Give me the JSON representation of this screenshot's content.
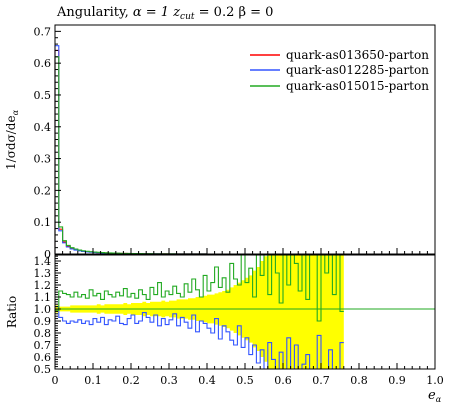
{
  "chart_data": [
    {
      "type": "line",
      "panel": "main",
      "title": "Angularity, α = 1 z_cut = 0.2 β = 0",
      "title_parts": {
        "prefix": "Angularity, ",
        "alpha": "α = 1 ",
        "z": "z",
        "cut": "cut",
        "rest": " = 0.2 β = 0"
      },
      "ylabel": "1/σdσ/de_α",
      "ylabel_parts": {
        "main": "1/σdσ/de",
        "sub": "α"
      },
      "xlabel": "e_α",
      "xlabel_parts": {
        "main": "e",
        "sub": "α"
      },
      "xlim": [
        0,
        1.0
      ],
      "ylim": [
        0,
        0.72
      ],
      "x_ticks": [
        "0",
        "0.1",
        "0.2",
        "0.3",
        "0.4",
        "0.5",
        "0.6",
        "0.7",
        "0.8",
        "0.9",
        "1.0"
      ],
      "y_ticks": [
        "0",
        "0.1",
        "0.2",
        "0.3",
        "0.4",
        "0.5",
        "0.6",
        "0.7"
      ],
      "legend_position": "top-right",
      "bin_width": 0.01,
      "series": [
        {
          "name": "quark-as013650-parton",
          "color": "#ff0000",
          "values": [
            0.64,
            0.078,
            0.038,
            0.024,
            0.018,
            0.014,
            0.011,
            0.009,
            0.0075,
            0.0063,
            0.0053,
            0.0045,
            0.0038,
            0.0033,
            0.0029,
            0.0025,
            0.0022,
            0.0019,
            0.0017,
            0.0015,
            0.0013,
            0.0012,
            0.0011,
            0.001,
            0.0009,
            0.0008,
            0.0007,
            0.0006,
            0.0005,
            0.0005,
            0.0004,
            0.0004,
            0.0003,
            0.0003,
            0.0003,
            0.0002,
            0.0002,
            0.0002,
            0.0002,
            0.0001
          ]
        },
        {
          "name": "quark-as012285-parton",
          "color": "#3355ff",
          "values": [
            0.655,
            0.073,
            0.035,
            0.022,
            0.016,
            0.0125,
            0.0099,
            0.008,
            0.0066,
            0.0055,
            0.0046,
            0.0039,
            0.0033,
            0.0028,
            0.0025,
            0.0021,
            0.0019,
            0.0016,
            0.0014,
            0.0012,
            0.0011,
            0.001,
            0.0009,
            0.0008,
            0.0007,
            0.0006,
            0.0005,
            0.0005,
            0.0004,
            0.0004,
            0.0003,
            0.0003,
            0.0002,
            0.0002,
            0.0002,
            0.0002,
            0.0001,
            0.0001,
            0.0001,
            0.0001
          ]
        },
        {
          "name": "quark-as015015-parton",
          "color": "#22aa22",
          "values": [
            0.62,
            0.085,
            0.042,
            0.027,
            0.02,
            0.0157,
            0.0124,
            0.0101,
            0.0085,
            0.0072,
            0.0061,
            0.0052,
            0.0044,
            0.0038,
            0.0034,
            0.0029,
            0.0026,
            0.0022,
            0.002,
            0.0018,
            0.0015,
            0.0014,
            0.0013,
            0.0012,
            0.0011,
            0.001,
            0.0008,
            0.0007,
            0.0006,
            0.0006,
            0.0005,
            0.0005,
            0.0004,
            0.0004,
            0.0004,
            0.0003,
            0.0003,
            0.0003,
            0.0003,
            0.0002
          ]
        }
      ]
    },
    {
      "type": "line",
      "panel": "ratio",
      "ylabel": "Ratio",
      "xlim": [
        0,
        1.0
      ],
      "ylim": [
        0.5,
        1.45
      ],
      "y_ticks": [
        "0.5",
        "0.6",
        "0.7",
        "0.8",
        "0.9",
        "1.0",
        "1.1",
        "1.2",
        "1.3",
        "1.4"
      ],
      "bin_width": 0.01,
      "band": {
        "color": "#ffff00",
        "lower": [
          0.97,
          0.98,
          0.98,
          0.98,
          0.97,
          0.97,
          0.97,
          0.97,
          0.97,
          0.97,
          0.97,
          0.96,
          0.97,
          0.96,
          0.96,
          0.96,
          0.96,
          0.96,
          0.95,
          0.96,
          0.95,
          0.95,
          0.95,
          0.94,
          0.95,
          0.94,
          0.94,
          0.94,
          0.93,
          0.94,
          0.93,
          0.93,
          0.92,
          0.92,
          0.92,
          0.91,
          0.91,
          0.9,
          0.9,
          0.89,
          0.88,
          0.88,
          0.87,
          0.86,
          0.85,
          0.84,
          0.82,
          0.8,
          0.78,
          0.76,
          0.74,
          0.72,
          0.68,
          0.65,
          0.6,
          0.56,
          0.5,
          0.5,
          0.5,
          0.5,
          0.5,
          0.5,
          0.5,
          0.5,
          0.5,
          0.5,
          0.5,
          0.5,
          0.5,
          0.5,
          0.5,
          0.5,
          0.5,
          0.5,
          0.5,
          0.5
        ],
        "upper": [
          1.03,
          1.02,
          1.02,
          1.02,
          1.03,
          1.03,
          1.03,
          1.03,
          1.03,
          1.03,
          1.03,
          1.04,
          1.03,
          1.04,
          1.04,
          1.04,
          1.04,
          1.04,
          1.05,
          1.04,
          1.05,
          1.05,
          1.05,
          1.06,
          1.05,
          1.06,
          1.06,
          1.06,
          1.07,
          1.06,
          1.07,
          1.07,
          1.08,
          1.08,
          1.08,
          1.09,
          1.09,
          1.1,
          1.1,
          1.11,
          1.12,
          1.12,
          1.13,
          1.14,
          1.15,
          1.16,
          1.18,
          1.2,
          1.22,
          1.24,
          1.26,
          1.28,
          1.32,
          1.35,
          1.4,
          1.44,
          1.45,
          1.45,
          1.45,
          1.45,
          1.45,
          1.45,
          1.45,
          1.45,
          1.45,
          1.45,
          1.45,
          1.45,
          1.45,
          1.45,
          1.45,
          1.45,
          1.45,
          1.45,
          1.45,
          1.45
        ]
      },
      "series": [
        {
          "name": "quark-as013650-parton",
          "color": "#ff0000",
          "values": [
            1.0,
            1.0,
            1.0,
            1.0,
            1.0,
            1.0,
            1.0,
            1.0,
            1.0,
            1.0,
            1.0,
            1.0,
            1.0,
            1.0,
            1.0,
            1.0,
            1.0,
            1.0,
            1.0,
            1.0,
            1.0,
            1.0,
            1.0,
            1.0,
            1.0,
            1.0,
            1.0,
            1.0,
            1.0,
            1.0,
            1.0,
            1.0,
            1.0,
            1.0,
            1.0,
            1.0,
            1.0,
            1.0,
            1.0,
            1.0,
            1.0,
            1.0,
            1.0,
            1.0,
            1.0,
            1.0,
            1.0,
            1.0,
            1.0,
            1.0,
            1.0,
            1.0,
            1.0,
            1.0,
            1.0,
            1.0,
            1.0,
            1.0,
            1.0,
            1.0,
            1.0,
            1.0,
            1.0,
            1.0,
            1.0,
            1.0,
            1.0,
            1.0,
            1.0,
            1.0,
            1.0,
            1.0,
            1.0,
            1.0,
            1.0,
            1.0
          ]
        },
        {
          "name": "quark-as012285-parton",
          "color": "#3355ff",
          "values": [
            1.02,
            0.93,
            0.9,
            0.88,
            0.9,
            0.89,
            0.91,
            0.88,
            0.9,
            0.87,
            0.92,
            0.89,
            0.93,
            0.87,
            0.91,
            0.9,
            0.94,
            0.88,
            0.87,
            0.92,
            0.95,
            0.88,
            0.9,
            0.97,
            0.93,
            0.89,
            0.95,
            0.86,
            0.92,
            0.87,
            0.91,
            0.96,
            0.86,
            0.93,
            0.89,
            0.84,
            0.95,
            0.81,
            0.9,
            0.88,
            0.84,
            0.8,
            0.92,
            0.75,
            0.86,
            0.81,
            0.74,
            0.7,
            0.86,
            0.68,
            0.76,
            0.62,
            0.7,
            0.55,
            0.66,
            0.5,
            0.72,
            0.58,
            0.5,
            0.64,
            0.5,
            0.76,
            0.5,
            0.7,
            0.5,
            0.54,
            0.62,
            0.5,
            0.5,
            0.78,
            0.5,
            0.5,
            0.66,
            0.5,
            0.5,
            0.72
          ]
        },
        {
          "name": "quark-as015015-parton",
          "color": "#22aa22",
          "values": [
            0.99,
            1.15,
            1.13,
            1.12,
            1.1,
            1.14,
            1.1,
            1.12,
            1.09,
            1.16,
            1.11,
            1.13,
            1.08,
            1.15,
            1.12,
            1.1,
            1.14,
            1.11,
            1.17,
            1.1,
            1.13,
            1.09,
            1.16,
            1.12,
            1.08,
            1.18,
            1.12,
            1.22,
            1.1,
            1.15,
            1.12,
            1.19,
            1.13,
            1.1,
            1.21,
            1.14,
            1.25,
            1.16,
            1.1,
            1.28,
            1.15,
            1.22,
            1.35,
            1.18,
            1.26,
            1.14,
            1.38,
            1.25,
            1.2,
            1.45,
            1.22,
            1.34,
            1.1,
            1.45,
            1.28,
            1.45,
            1.12,
            1.45,
            1.3,
            1.05,
            1.45,
            1.2,
            1.45,
            1.38,
            1.15,
            1.45,
            1.08,
            1.45,
            1.45,
            0.9,
            1.45,
            1.3,
            1.45,
            1.12,
            1.45,
            0.98
          ]
        }
      ]
    }
  ]
}
